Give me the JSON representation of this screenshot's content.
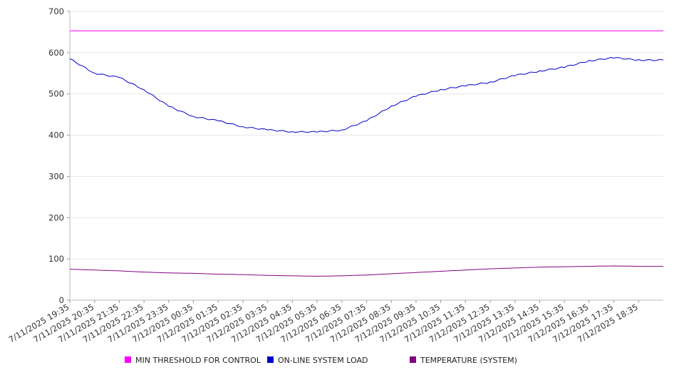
{
  "chart_data": {
    "type": "line",
    "title": "",
    "xlabel": "",
    "ylabel": "",
    "ylim": [
      0,
      700
    ],
    "yticks": [
      0,
      100,
      200,
      300,
      400,
      500,
      600,
      700
    ],
    "grid": true,
    "legend_position": "bottom",
    "categories": [
      "7/11/2025 19:35",
      "7/11/2025 20:35",
      "7/11/2025 21:35",
      "7/11/2025 22:35",
      "7/11/2025 23:35",
      "7/12/2025 00:35",
      "7/12/2025 01:35",
      "7/12/2025 02:35",
      "7/12/2025 03:35",
      "7/12/2025 04:35",
      "7/12/2025 05:35",
      "7/12/2025 06:35",
      "7/12/2025 07:35",
      "7/12/2025 08:35",
      "7/12/2025 09:35",
      "7/12/2025 10:35",
      "7/12/2025 11:35",
      "7/12/2025 12:35",
      "7/12/2025 13:35",
      "7/12/2025 14:35",
      "7/12/2025 15:35",
      "7/12/2025 16:35",
      "7/12/2025 17:35",
      "7/12/2025 18:35"
    ],
    "series": [
      {
        "name": "MIN THRESHOLD FOR CONTROL",
        "color": "#ff00ff",
        "values": [
          653,
          653,
          653,
          653,
          653,
          653,
          653,
          653,
          653,
          653,
          653,
          653,
          653,
          653,
          653,
          653,
          653,
          653,
          653,
          653,
          653,
          653,
          653,
          653
        ]
      },
      {
        "name": "ON-LINE SYSTEM LOAD",
        "color": "#0000cc",
        "values": [
          585,
          550,
          540,
          510,
          470,
          445,
          435,
          420,
          413,
          408,
          408,
          412,
          435,
          470,
          495,
          510,
          520,
          528,
          545,
          555,
          565,
          580,
          588,
          582
        ]
      },
      {
        "name": "TEMPERATURE (SYSTEM)",
        "color": "#800080",
        "values": [
          75,
          73,
          71,
          68,
          66,
          65,
          63,
          62,
          60,
          59,
          58,
          59,
          61,
          64,
          67,
          70,
          73,
          76,
          78,
          80,
          81,
          82,
          83,
          82
        ]
      }
    ]
  }
}
